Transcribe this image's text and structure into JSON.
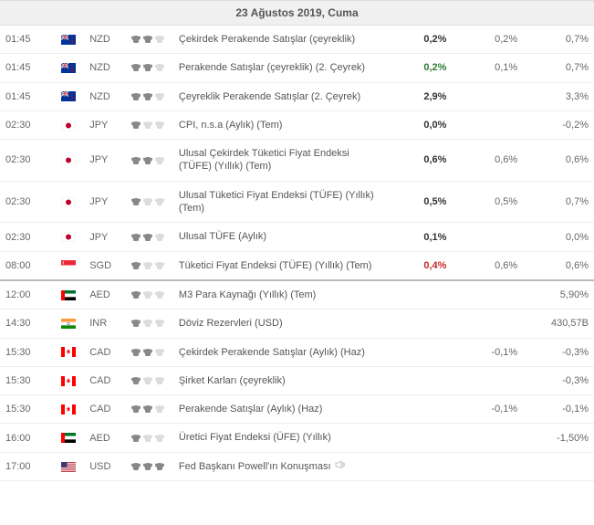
{
  "date_header": "23 Ağustos 2019, Cuma",
  "colors": {
    "bull_on": "#888888",
    "bull_off": "#dcdcdc",
    "val_normal": "#333333",
    "val_green": "#2e7d32",
    "val_red": "#c62828",
    "val_muted": "#666666",
    "border": "#eeeeee",
    "header_bg": "#f0f0f0"
  },
  "flags": {
    "NZD": {
      "bg": "#003399",
      "stripes": null,
      "dot": null,
      "stars": "#cc0000",
      "union": true
    },
    "JPY": {
      "bg": "#ffffff",
      "dot": "#bc002d"
    },
    "SGD": {
      "top": "#ed2939",
      "bottom": "#ffffff"
    },
    "AED": {
      "left": "#ff0000",
      "s1": "#00732f",
      "s2": "#ffffff",
      "s3": "#000000"
    },
    "INR": {
      "s1": "#ff9933",
      "s2": "#ffffff",
      "s3": "#138808",
      "wheel": "#000080"
    },
    "CAD": {
      "side": "#ff0000",
      "center": "#ffffff",
      "leaf": "#ff0000"
    },
    "USD": {
      "stripes": [
        "#b22234",
        "#ffffff"
      ],
      "canton": "#3c3b6e"
    }
  },
  "rows": [
    {
      "time": "01:45",
      "currency": "NZD",
      "importance": 2,
      "event": "Çekirdek Perakende Satışlar (çeyreklik)",
      "actual": "0,2%",
      "actual_color": "normal",
      "forecast": "0,2%",
      "previous": "0,7%"
    },
    {
      "time": "01:45",
      "currency": "NZD",
      "importance": 2,
      "event": "Perakende Satışlar (çeyreklik) (2. Çeyrek)",
      "actual": "0,2%",
      "actual_color": "green",
      "forecast": "0,1%",
      "previous": "0,7%"
    },
    {
      "time": "01:45",
      "currency": "NZD",
      "importance": 2,
      "event": "Çeyreklik Perakende Satışlar (2. Çeyrek)",
      "actual": "2,9%",
      "actual_color": "normal",
      "forecast": "",
      "previous": "3,3%"
    },
    {
      "time": "02:30",
      "currency": "JPY",
      "importance": 1,
      "event": "CPI, n.s.a (Aylık) (Tem)",
      "actual": "0,0%",
      "actual_color": "normal",
      "forecast": "",
      "previous": "-0,2%"
    },
    {
      "time": "02:30",
      "currency": "JPY",
      "importance": 2,
      "event": "Ulusal Çekirdek Tüketici Fiyat Endeksi (TÜFE) (Yıllık) (Tem)",
      "actual": "0,6%",
      "actual_color": "normal",
      "forecast": "0,6%",
      "previous": "0,6%"
    },
    {
      "time": "02:30",
      "currency": "JPY",
      "importance": 1,
      "event": "Ulusal Tüketici Fiyat Endeksi (TÜFE) (Yıllık) (Tem)",
      "actual": "0,5%",
      "actual_color": "normal",
      "forecast": "0,5%",
      "previous": "0,7%"
    },
    {
      "time": "02:30",
      "currency": "JPY",
      "importance": 2,
      "event": "Ulusal TÜFE (Aylık)",
      "actual": "0,1%",
      "actual_color": "normal",
      "forecast": "",
      "previous": "0,0%"
    },
    {
      "time": "08:00",
      "currency": "SGD",
      "importance": 1,
      "event": "Tüketici Fiyat Endeksi (TÜFE) (Yıllık) (Tem)",
      "actual": "0,4%",
      "actual_color": "red",
      "forecast": "0,6%",
      "previous": "0,6%"
    },
    {
      "separator": true
    },
    {
      "time": "12:00",
      "currency": "AED",
      "importance": 1,
      "event": "M3 Para Kaynağı (Yıllık) (Tem)",
      "actual": "",
      "actual_color": "normal",
      "forecast": "",
      "previous": "5,90%"
    },
    {
      "time": "14:30",
      "currency": "INR",
      "importance": 1,
      "event": "Döviz Rezervleri (USD)",
      "actual": "",
      "actual_color": "normal",
      "forecast": "",
      "previous": "430,57B"
    },
    {
      "time": "15:30",
      "currency": "CAD",
      "importance": 2,
      "event": "Çekirdek Perakende Satışlar (Aylık) (Haz)",
      "actual": "",
      "actual_color": "normal",
      "forecast": "-0,1%",
      "previous": "-0,3%"
    },
    {
      "time": "15:30",
      "currency": "CAD",
      "importance": 1,
      "event": "Şirket Karları (çeyreklik)",
      "actual": "",
      "actual_color": "normal",
      "forecast": "",
      "previous": "-0,3%"
    },
    {
      "time": "15:30",
      "currency": "CAD",
      "importance": 2,
      "event": "Perakende Satışlar (Aylık) (Haz)",
      "actual": "",
      "actual_color": "normal",
      "forecast": "-0,1%",
      "previous": "-0,1%"
    },
    {
      "time": "16:00",
      "currency": "AED",
      "importance": 1,
      "event": "Üretici Fiyat Endeksi (ÜFE) (Yıllık)",
      "actual": "",
      "actual_color": "normal",
      "forecast": "",
      "previous": "-1,50%"
    },
    {
      "time": "17:00",
      "currency": "USD",
      "importance": 3,
      "event": "Fed Başkanı Powell'ın Konuşması",
      "speech": true,
      "actual": "",
      "actual_color": "normal",
      "forecast": "",
      "previous": ""
    }
  ]
}
